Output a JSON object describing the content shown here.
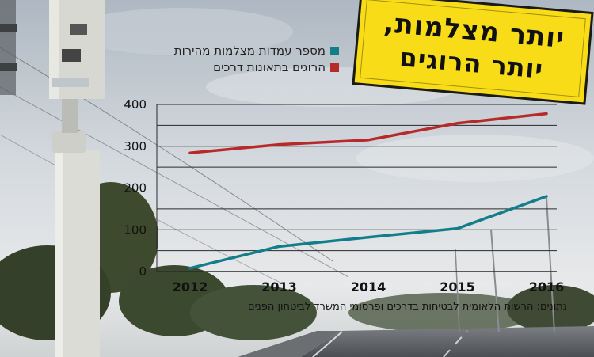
{
  "stamp": {
    "line1": "יותר מצלמות,",
    "line2": "יותר הרוגים"
  },
  "source": "נתונים: הרשות הלאומית לבטיחות בדרכים ופרסומי המשרד לביטחון הפנים",
  "chart_data": {
    "type": "line",
    "x": [
      2012,
      2013,
      2014,
      2015,
      2016
    ],
    "ylim": [
      0,
      400
    ],
    "yticks": [
      0,
      100,
      200,
      300,
      400
    ],
    "grid": true,
    "legend_position": "top-left",
    "series": [
      {
        "name": "מספר עמדות מצלמות מהירות",
        "color": "#127e8a",
        "values": [
          8,
          60,
          82,
          103,
          180
        ]
      },
      {
        "name": "הרוגים בתאונות דרכים",
        "color": "#b72a2a",
        "values": [
          284,
          304,
          315,
          355,
          378
        ]
      }
    ]
  }
}
